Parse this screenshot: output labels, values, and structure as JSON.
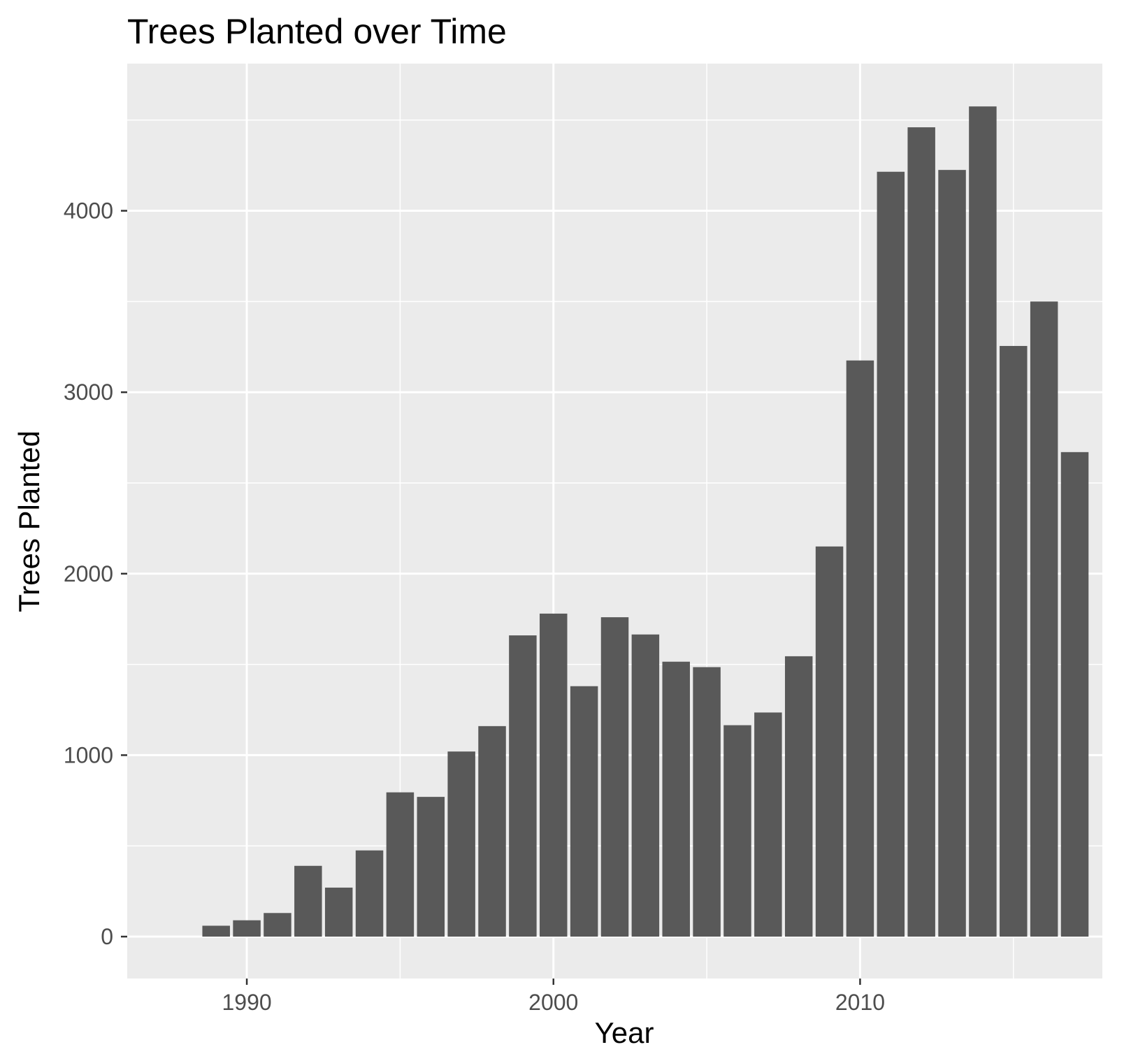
{
  "chart_data": {
    "type": "bar",
    "title": "Trees Planted over Time",
    "xlabel": "Year",
    "ylabel": "Trees Planted",
    "x": [
      1989,
      1990,
      1991,
      1992,
      1993,
      1994,
      1995,
      1996,
      1997,
      1998,
      1999,
      2000,
      2001,
      2002,
      2003,
      2004,
      2005,
      2006,
      2007,
      2008,
      2009,
      2010,
      2011,
      2012,
      2013,
      2014,
      2015,
      2016,
      2017
    ],
    "values": [
      60,
      90,
      130,
      390,
      270,
      475,
      795,
      770,
      1020,
      1160,
      1660,
      1780,
      1380,
      1760,
      1665,
      1515,
      1485,
      1165,
      1235,
      1545,
      2150,
      3175,
      4215,
      4460,
      4225,
      4575,
      3255,
      3500,
      2670
    ],
    "xlim": [
      1986.1,
      2017.9
    ],
    "ylim": [
      -231,
      4811
    ],
    "xticks": [
      1990,
      2000,
      2010
    ],
    "yticks": [
      0,
      1000,
      2000,
      3000,
      4000
    ],
    "grid": true,
    "legend": "none",
    "colors": {
      "bar": "#595959",
      "panel": "#ebebeb",
      "grid": "#ffffff",
      "tick_text": "#4d4d4d",
      "tick_mark": "#333333"
    }
  }
}
